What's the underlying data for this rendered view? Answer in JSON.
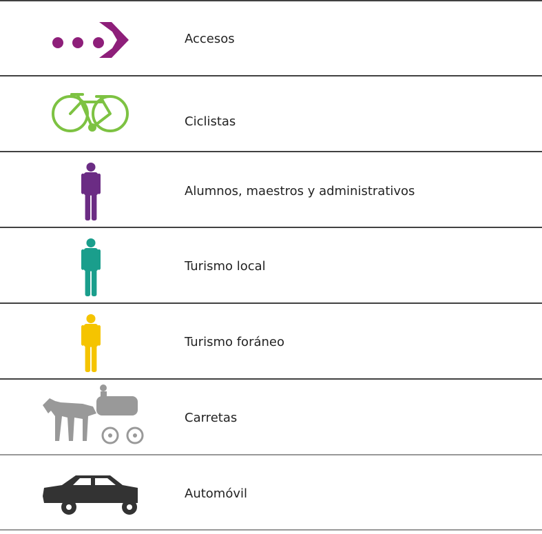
{
  "rows": [
    {
      "label": "Accesos"
    },
    {
      "label": "Ciclistas"
    },
    {
      "label": "Alumnos, maestros y administrativos"
    },
    {
      "label": "Turismo local"
    },
    {
      "label": "Turismo foráneo"
    },
    {
      "label": "Carretas"
    },
    {
      "label": "Automóvil"
    }
  ]
}
